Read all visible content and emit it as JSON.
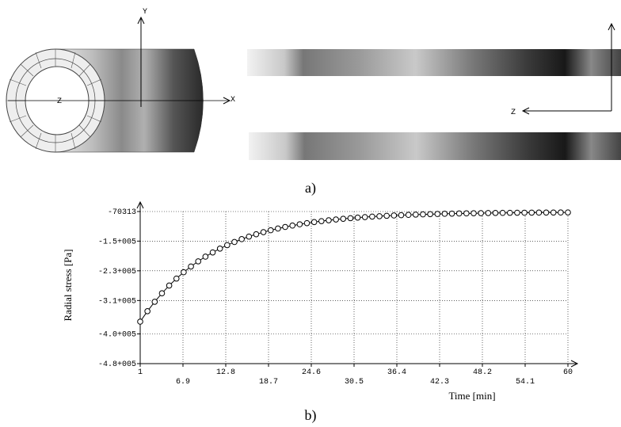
{
  "figure_a": {
    "caption": "a)",
    "axis_y": "Y",
    "axis_x": "X",
    "axis_z": "Z",
    "axis_z_right": "Z"
  },
  "chart_data": {
    "type": "line",
    "xlabel": "Time [min]",
    "ylabel": "Radial stress [Pa]",
    "x": [
      1,
      2,
      3,
      4,
      5,
      6,
      7,
      8,
      9,
      10,
      11,
      12,
      13,
      14,
      15,
      16,
      17,
      18,
      19,
      20,
      21,
      22,
      23,
      24,
      25,
      26,
      27,
      28,
      29,
      30,
      31,
      32,
      33,
      34,
      35,
      36,
      37,
      38,
      39,
      40,
      41,
      42,
      43,
      44,
      45,
      46,
      47,
      48,
      49,
      50,
      51,
      52,
      53,
      54,
      55,
      56,
      57,
      58,
      59,
      60
    ],
    "series": [
      {
        "color": "#000000",
        "values": [
          -366900,
          -338800,
          -313400,
          -290500,
          -269700,
          -250900,
          -233800,
          -218400,
          -204500,
          -191900,
          -180500,
          -170200,
          -160800,
          -152400,
          -144700,
          -137800,
          -131500,
          -125900,
          -120700,
          -116100,
          -111900,
          -108100,
          -104700,
          -101600,
          -98700,
          -96200,
          -93900,
          -91800,
          -89900,
          -88200,
          -86700,
          -85300,
          -84000,
          -82900,
          -81800,
          -80900,
          -80100,
          -79300,
          -78600,
          -78000,
          -77400,
          -76900,
          -76400,
          -76000,
          -75600,
          -75300,
          -75000,
          -74700,
          -74400,
          -74200,
          -74000,
          -73800,
          -73600,
          -73500,
          -73300,
          -73200,
          -73100,
          -73000,
          -72900,
          -72800
        ]
      }
    ],
    "xlim": [
      1,
      60
    ],
    "xticks": [
      1,
      6.9,
      12.8,
      18.7,
      24.6,
      30.5,
      36.4,
      42.3,
      48.2,
      54.1,
      60
    ],
    "ylim": [
      -480000,
      -70313
    ],
    "yticks": [
      {
        "value": -480000,
        "label": "-4.8+005"
      },
      {
        "value": -400000,
        "label": "-4.0+005"
      },
      {
        "value": -310000,
        "label": "-3.1+005"
      },
      {
        "value": -230000,
        "label": "-2.3+005"
      },
      {
        "value": -150000,
        "label": "-1.5+005"
      },
      -70313
    ],
    "grid": true
  },
  "figure_b": {
    "caption": "b)"
  }
}
